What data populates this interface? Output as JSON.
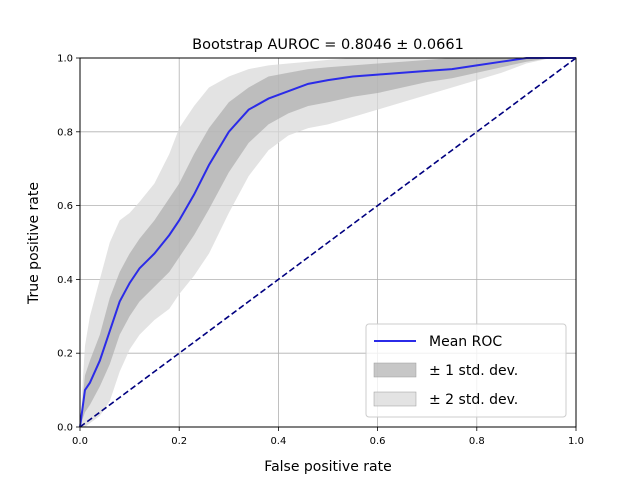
{
  "chart_data": {
    "type": "line",
    "title": "Bootstrap AUROC = 0.8046 ± 0.0661",
    "xlabel": "False positive rate",
    "ylabel": "True positive rate",
    "xlim": [
      0,
      1
    ],
    "ylim": [
      0,
      1
    ],
    "grid": true,
    "xticks": [
      "0.0",
      "0.2",
      "0.4",
      "0.6",
      "0.8",
      "1.0"
    ],
    "yticks": [
      "0.0",
      "0.2",
      "0.4",
      "0.6",
      "0.8",
      "1.0"
    ],
    "legend_position": "lower-right",
    "x": [
      0,
      0.01,
      0.02,
      0.04,
      0.06,
      0.08,
      0.1,
      0.12,
      0.15,
      0.18,
      0.2,
      0.23,
      0.26,
      0.3,
      0.34,
      0.38,
      0.42,
      0.46,
      0.5,
      0.55,
      0.6,
      0.65,
      0.7,
      0.75,
      0.8,
      0.85,
      0.9,
      0.95,
      1.0
    ],
    "series": [
      {
        "name": "Mean ROC",
        "kind": "line",
        "color": "#2b2be8",
        "values": [
          0,
          0.1,
          0.12,
          0.18,
          0.26,
          0.34,
          0.39,
          0.43,
          0.47,
          0.52,
          0.56,
          0.63,
          0.71,
          0.8,
          0.86,
          0.89,
          0.91,
          0.93,
          0.94,
          0.95,
          0.955,
          0.96,
          0.965,
          0.97,
          0.98,
          0.99,
          1.0,
          1.0,
          1.0
        ]
      },
      {
        "name": "± 1 std. dev.",
        "kind": "band",
        "color": "#a9a9a9",
        "lower": [
          0,
          0.04,
          0.06,
          0.11,
          0.17,
          0.25,
          0.3,
          0.34,
          0.38,
          0.42,
          0.46,
          0.52,
          0.59,
          0.69,
          0.77,
          0.82,
          0.85,
          0.87,
          0.88,
          0.895,
          0.905,
          0.92,
          0.935,
          0.945,
          0.96,
          0.975,
          0.99,
          1.0,
          1.0
        ],
        "upper": [
          0,
          0.14,
          0.18,
          0.25,
          0.35,
          0.42,
          0.47,
          0.51,
          0.56,
          0.62,
          0.66,
          0.74,
          0.81,
          0.88,
          0.92,
          0.95,
          0.96,
          0.97,
          0.975,
          0.98,
          0.985,
          0.99,
          0.995,
          1.0,
          1.0,
          1.0,
          1.0,
          1.0,
          1.0
        ]
      },
      {
        "name": "± 2 std. dev.",
        "kind": "band",
        "color": "#d9d9d9",
        "lower": [
          0,
          0.0,
          0.01,
          0.03,
          0.07,
          0.15,
          0.21,
          0.25,
          0.29,
          0.32,
          0.36,
          0.41,
          0.47,
          0.58,
          0.68,
          0.75,
          0.79,
          0.81,
          0.82,
          0.84,
          0.86,
          0.88,
          0.9,
          0.92,
          0.94,
          0.96,
          0.985,
          1.0,
          1.0
        ],
        "upper": [
          0,
          0.22,
          0.3,
          0.4,
          0.5,
          0.56,
          0.58,
          0.61,
          0.66,
          0.74,
          0.81,
          0.87,
          0.92,
          0.95,
          0.97,
          0.98,
          0.985,
          0.99,
          0.995,
          1.0,
          1.0,
          1.0,
          1.0,
          1.0,
          1.0,
          1.0,
          1.0,
          1.0,
          1.0
        ]
      },
      {
        "name": "",
        "kind": "diagonal",
        "color": "#000080",
        "values": [
          0,
          0.01,
          0.02,
          0.04,
          0.06,
          0.08,
          0.1,
          0.12,
          0.15,
          0.18,
          0.2,
          0.23,
          0.26,
          0.3,
          0.34,
          0.38,
          0.42,
          0.46,
          0.5,
          0.55,
          0.6,
          0.65,
          0.7,
          0.75,
          0.8,
          0.85,
          0.9,
          0.95,
          1.0
        ]
      }
    ]
  }
}
